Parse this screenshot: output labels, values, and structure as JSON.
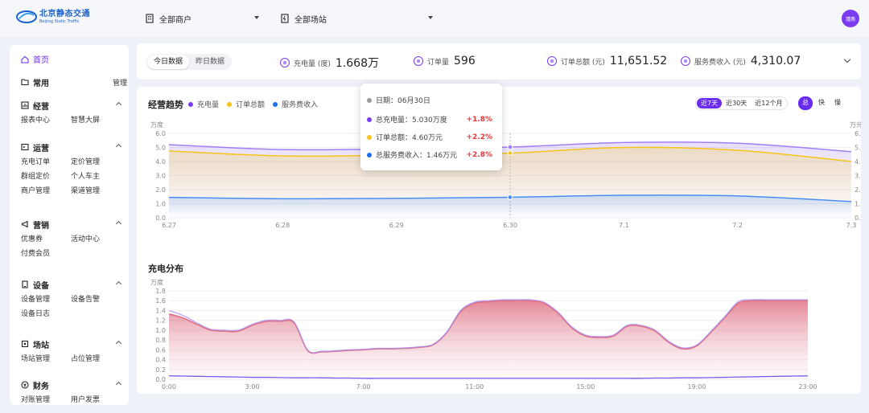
{
  "app": {
    "logo_cn": "北京静态交通",
    "logo_en": "Beijing Static Traffic",
    "avatar": "瑾燕"
  },
  "header": {
    "merchant_select": "全部商户",
    "station_select": "全部场站"
  },
  "sidebar": {
    "home": "首页",
    "groups": [
      {
        "label": "常用",
        "right": "管理",
        "items": []
      },
      {
        "label": "经营",
        "items": [
          "报表中心",
          "智慧大屏"
        ]
      },
      {
        "label": "运营",
        "items": [
          "充电订单",
          "定价管理",
          "群组定价",
          "个人车主",
          "商户管理",
          "渠道管理"
        ]
      },
      {
        "label": "营销",
        "items": [
          "优惠券",
          "活动中心",
          "付费会员"
        ]
      },
      {
        "label": "设备",
        "items": [
          "设备管理",
          "设备告警",
          "设备日志"
        ]
      },
      {
        "label": "场站",
        "items": [
          "场站管理",
          "占位管理"
        ]
      },
      {
        "label": "财务",
        "items": [
          "对账管理",
          "用户发票"
        ]
      }
    ]
  },
  "stats": {
    "tabs": [
      "今日数据",
      "昨日数据"
    ],
    "items": [
      {
        "label": "充电量 (度)",
        "value": "1.668万"
      },
      {
        "label": "订单量",
        "value": "596"
      },
      {
        "label": "订单总额 (元)",
        "value": "11,651.52"
      },
      {
        "label": "服务费收入 (元)",
        "value": "4,310.07"
      }
    ]
  },
  "trend": {
    "title": "经营趋势",
    "legend": [
      {
        "name": "充电量",
        "color": "#7b3cf0"
      },
      {
        "name": "订单总额",
        "color": "#f5c518"
      },
      {
        "name": "服务费收入",
        "color": "#1f6ff2"
      }
    ],
    "range_buttons": [
      "近7天",
      "近30天",
      "近12个月"
    ],
    "speed_buttons": [
      "总",
      "快",
      "慢"
    ],
    "y_unit_left": "万度",
    "y_unit_right": "万元",
    "tooltip": {
      "date_label": "日期：06月30日",
      "rows": [
        {
          "label": "总充电量：5.030万度",
          "change": "+1.8%",
          "color": "#7b3cf0"
        },
        {
          "label": "订单总额：4.60万元",
          "change": "+2.2%",
          "color": "#f5c518"
        },
        {
          "label": "总服务费收入：1.46万元",
          "change": "+2.8%",
          "color": "#1f6ff2"
        }
      ]
    }
  },
  "distribution": {
    "title": "充电分布",
    "y_unit": "万度"
  },
  "chart_data": [
    {
      "type": "line",
      "title": "经营趋势",
      "categories": [
        "6.27",
        "6.28",
        "6.29",
        "6.30",
        "7.1",
        "7.2",
        "7.3"
      ],
      "ylim": [
        0,
        6
      ],
      "yticks": [
        "0.0",
        "1.0",
        "2.0",
        "3.0",
        "4.0",
        "5.0",
        "6.0"
      ],
      "series": [
        {
          "name": "充电量",
          "color": "#a27ff5",
          "values": [
            5.2,
            4.85,
            4.9,
            5.03,
            5.35,
            5.3,
            4.7
          ]
        },
        {
          "name": "订单总额",
          "color": "#f5c518",
          "values": [
            4.75,
            4.4,
            4.45,
            4.6,
            5.0,
            4.8,
            4.0
          ]
        },
        {
          "name": "服务费收入",
          "color": "#4a8ef5",
          "values": [
            1.45,
            1.35,
            1.38,
            1.46,
            1.6,
            1.55,
            1.15
          ]
        }
      ]
    },
    {
      "type": "area",
      "title": "充电分布",
      "x_ticks": [
        "0:00",
        "3:00",
        "7:00",
        "11:00",
        "15:00",
        "19:00",
        "23:00"
      ],
      "x": [
        0,
        0.5,
        1,
        1.5,
        2,
        2.5,
        3,
        3.5,
        4,
        4.5,
        5,
        5.5,
        6,
        6.5,
        7,
        7.5,
        8,
        8.5,
        9,
        9.5,
        10,
        10.5,
        11,
        11.5,
        12,
        12.5,
        13,
        13.5,
        14,
        14.5,
        15,
        15.5,
        16,
        16.5,
        17,
        17.5,
        18,
        18.5,
        19,
        19.5,
        20,
        20.5,
        21,
        21.5,
        22,
        22.5,
        23
      ],
      "ylim": [
        0,
        1.8
      ],
      "yticks": [
        "0.0",
        "0.2",
        "0.4",
        "0.6",
        "0.8",
        "1.0",
        "1.2",
        "1.4",
        "1.6",
        "1.8"
      ],
      "series": [
        {
          "name": "总",
          "color": "#e06f82",
          "values": [
            1.33,
            1.25,
            1.12,
            1.0,
            0.98,
            0.98,
            1.1,
            1.18,
            1.18,
            1.15,
            0.58,
            0.56,
            0.57,
            0.59,
            0.6,
            0.62,
            0.62,
            0.63,
            0.65,
            0.7,
            0.95,
            1.38,
            1.55,
            1.58,
            1.6,
            1.6,
            1.6,
            1.55,
            1.35,
            1.05,
            0.88,
            0.85,
            0.88,
            1.08,
            1.08,
            0.98,
            0.75,
            0.62,
            0.68,
            0.95,
            1.25,
            1.55,
            1.6,
            1.6,
            1.6,
            1.6,
            1.6
          ]
        },
        {
          "name": "快",
          "color": "#a98df2",
          "values": [
            1.4,
            1.3,
            1.15,
            1.02,
            1.0,
            1.0,
            1.12,
            1.2,
            1.2,
            1.17,
            0.59,
            0.57,
            0.58,
            0.6,
            0.61,
            0.63,
            0.63,
            0.64,
            0.66,
            0.71,
            0.96,
            1.4,
            1.57,
            1.6,
            1.62,
            1.62,
            1.62,
            1.57,
            1.37,
            1.07,
            0.9,
            0.87,
            0.9,
            1.1,
            1.1,
            1.0,
            0.77,
            0.64,
            0.7,
            0.97,
            1.27,
            1.58,
            1.62,
            1.62,
            1.62,
            1.62,
            1.62
          ]
        },
        {
          "name": "慢",
          "color": "#7b5cf0",
          "values": [
            0.07,
            0.065,
            0.06,
            0.055,
            0.05,
            0.045,
            0.04,
            0.04,
            0.035,
            0.03,
            0.03,
            0.03,
            0.025,
            0.025,
            0.02,
            0.02,
            0.02,
            0.02,
            0.02,
            0.02,
            0.02,
            0.02,
            0.02,
            0.02,
            0.02,
            0.02,
            0.02,
            0.02,
            0.02,
            0.02,
            0.02,
            0.02,
            0.02,
            0.02,
            0.02,
            0.025,
            0.025,
            0.03,
            0.03,
            0.035,
            0.04,
            0.045,
            0.05,
            0.055,
            0.06,
            0.065,
            0.07
          ]
        }
      ]
    }
  ]
}
